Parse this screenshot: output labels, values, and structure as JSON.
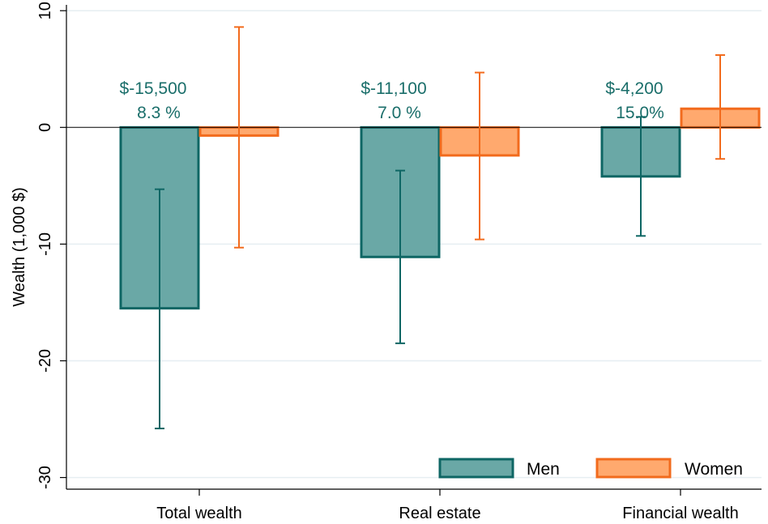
{
  "chart_data": {
    "type": "bar",
    "title": "",
    "xlabel": "",
    "ylabel": "Wealth (1,000 $)",
    "ylim": [
      -31,
      10.5
    ],
    "yticks": [
      10,
      0,
      -10,
      -20,
      -30
    ],
    "ytick_labels": [
      "10",
      "0",
      "-10",
      "-20",
      "-30"
    ],
    "grid": true,
    "categories": [
      "Total wealth",
      "Real estate",
      "Financial wealth"
    ],
    "series": [
      {
        "name": "Men",
        "values": [
          -15.5,
          -11.1,
          -4.2
        ],
        "ci_low": [
          -25.8,
          -18.5,
          -9.3
        ],
        "ci_high": [
          -5.3,
          -3.7,
          0.9
        ],
        "fill": "#6aa8a6",
        "stroke": "#0e6664"
      },
      {
        "name": "Women",
        "values": [
          -0.7,
          -2.4,
          1.6
        ],
        "ci_low": [
          -10.3,
          -9.6,
          -2.7
        ],
        "ci_high": [
          8.6,
          4.7,
          6.2
        ],
        "fill": "#ffa96e",
        "stroke": "#f26b1d"
      }
    ],
    "annotations": [
      {
        "line1": "$-15,500",
        "line2": "8.3 %"
      },
      {
        "line1": "$-11,100",
        "line2": "7.0 %"
      },
      {
        "line1": "$-4,200",
        "line2": "15.0%"
      }
    ],
    "legend": {
      "position": "bottom-right",
      "entries": [
        "Men",
        "Women"
      ]
    }
  }
}
